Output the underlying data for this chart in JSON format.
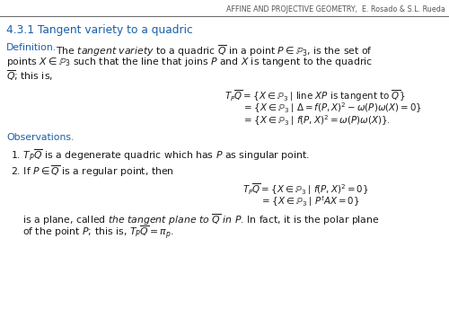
{
  "bg_color": "#ffffff",
  "header_line_color": "#666666",
  "header_text": "AFFINE AND PROJECTIVE GEOMETRY,  E. Rosado & S.L. Rueda",
  "header_fontsize": 5.8,
  "section_title": "4.3.1 Tangent variety to a quadric",
  "section_color": "#1a5fa8",
  "section_fontsize": 8.8,
  "blue_color": "#1a5fa8",
  "body_color": "#1a1a1a",
  "body_fontsize": 7.8,
  "math_fontsize": 7.4
}
